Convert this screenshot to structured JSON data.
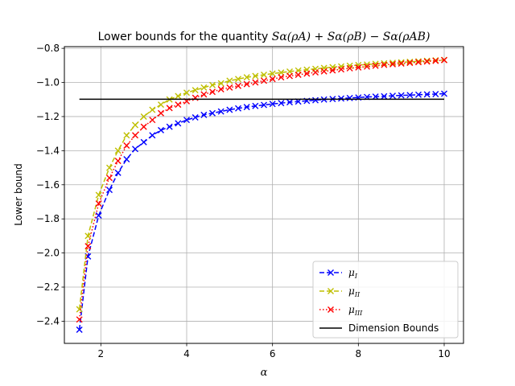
{
  "chart_data": {
    "type": "line",
    "title": {
      "prefix": "Lower bounds for the quantity ",
      "math": "Sα(ρA) + Sα(ρB) − Sα(ρAB)"
    },
    "xlabel": "α",
    "ylabel": "Lower bound",
    "xlim": [
      1.15,
      10.45
    ],
    "ylim": [
      -2.53,
      -0.79
    ],
    "xticks": [
      2,
      4,
      6,
      8,
      10
    ],
    "yticks": [
      -2.4,
      -2.2,
      -2.0,
      -1.8,
      -1.6,
      -1.4,
      -1.2,
      -1.0,
      -0.8
    ],
    "xtick_labels": [
      "2",
      "4",
      "6",
      "8",
      "10"
    ],
    "ytick_labels": [
      "−2.4",
      "−2.2",
      "−2.0",
      "−1.8",
      "−1.6",
      "−1.4",
      "−1.2",
      "−1.0",
      "−0.8"
    ],
    "grid": true,
    "legend_position": "lower-right",
    "series": [
      {
        "name": "μI",
        "legend_symbol": "μ",
        "legend_sub": "I",
        "color": "#0000ff",
        "linestyle": "dashed",
        "marker": "x",
        "x": [
          1.5,
          1.7,
          1.95,
          2.2,
          2.4,
          2.6,
          2.8,
          3.0,
          3.2,
          3.4,
          3.6,
          3.8,
          4.0,
          4.2,
          4.4,
          4.6,
          4.8,
          5.0,
          5.2,
          5.4,
          5.6,
          5.8,
          6.0,
          6.2,
          6.4,
          6.6,
          6.8,
          7.0,
          7.2,
          7.4,
          7.6,
          7.8,
          8.0,
          8.2,
          8.4,
          8.6,
          8.8,
          9.0,
          9.2,
          9.4,
          9.6,
          9.8,
          10.0
        ],
        "y": [
          -2.45,
          -2.02,
          -1.78,
          -1.63,
          -1.53,
          -1.45,
          -1.39,
          -1.35,
          -1.31,
          -1.28,
          -1.26,
          -1.24,
          -1.22,
          -1.205,
          -1.19,
          -1.18,
          -1.17,
          -1.16,
          -1.152,
          -1.144,
          -1.138,
          -1.132,
          -1.126,
          -1.121,
          -1.116,
          -1.112,
          -1.108,
          -1.104,
          -1.1,
          -1.097,
          -1.094,
          -1.091,
          -1.088,
          -1.085,
          -1.083,
          -1.081,
          -1.078,
          -1.076,
          -1.074,
          -1.072,
          -1.07,
          -1.068,
          -1.066
        ]
      },
      {
        "name": "μII",
        "legend_symbol": "μ",
        "legend_sub": "II",
        "color": "#bfbf00",
        "linestyle": "dashed",
        "marker": "x",
        "x": [
          1.5,
          1.7,
          1.95,
          2.2,
          2.4,
          2.6,
          2.8,
          3.0,
          3.2,
          3.4,
          3.6,
          3.8,
          4.0,
          4.2,
          4.4,
          4.6,
          4.8,
          5.0,
          5.2,
          5.4,
          5.6,
          5.8,
          6.0,
          6.2,
          6.4,
          6.6,
          6.8,
          7.0,
          7.2,
          7.4,
          7.6,
          7.8,
          8.0,
          8.2,
          8.4,
          8.6,
          8.8,
          9.0,
          9.2,
          9.4,
          9.6,
          9.8,
          10.0
        ],
        "y": [
          -2.33,
          -1.9,
          -1.66,
          -1.5,
          -1.4,
          -1.31,
          -1.25,
          -1.2,
          -1.16,
          -1.13,
          -1.1,
          -1.08,
          -1.06,
          -1.045,
          -1.03,
          -1.015,
          -1.005,
          -0.99,
          -0.98,
          -0.97,
          -0.962,
          -0.955,
          -0.948,
          -0.942,
          -0.936,
          -0.93,
          -0.925,
          -0.92,
          -0.915,
          -0.91,
          -0.906,
          -0.902,
          -0.898,
          -0.895,
          -0.891,
          -0.888,
          -0.885,
          -0.882,
          -0.879,
          -0.876,
          -0.873,
          -0.87,
          -0.868
        ]
      },
      {
        "name": "μIII",
        "legend_symbol": "μ",
        "legend_sub": "III",
        "color": "#ff0000",
        "linestyle": "dotted",
        "marker": "x",
        "x": [
          1.5,
          1.7,
          1.95,
          2.2,
          2.4,
          2.6,
          2.8,
          3.0,
          3.2,
          3.4,
          3.6,
          3.8,
          4.0,
          4.2,
          4.4,
          4.6,
          4.8,
          5.0,
          5.2,
          5.4,
          5.6,
          5.8,
          6.0,
          6.2,
          6.4,
          6.6,
          6.8,
          7.0,
          7.2,
          7.4,
          7.6,
          7.8,
          8.0,
          8.2,
          8.4,
          8.6,
          8.8,
          9.0,
          9.2,
          9.4,
          9.6,
          9.8,
          10.0
        ],
        "y": [
          -2.39,
          -1.96,
          -1.71,
          -1.56,
          -1.46,
          -1.37,
          -1.31,
          -1.26,
          -1.22,
          -1.18,
          -1.15,
          -1.13,
          -1.11,
          -1.09,
          -1.07,
          -1.055,
          -1.04,
          -1.03,
          -1.02,
          -1.01,
          -1.0,
          -0.99,
          -0.98,
          -0.97,
          -0.962,
          -0.955,
          -0.948,
          -0.941,
          -0.935,
          -0.929,
          -0.923,
          -0.917,
          -0.912,
          -0.907,
          -0.902,
          -0.897,
          -0.893,
          -0.889,
          -0.885,
          -0.881,
          -0.877,
          -0.873,
          -0.869
        ]
      },
      {
        "name": "Dimension Bounds",
        "legend_label": "Dimension Bounds",
        "color": "#000000",
        "linestyle": "solid",
        "marker": "none",
        "x": [
          1.5,
          10.0
        ],
        "y": [
          -1.098,
          -1.098
        ]
      }
    ]
  }
}
